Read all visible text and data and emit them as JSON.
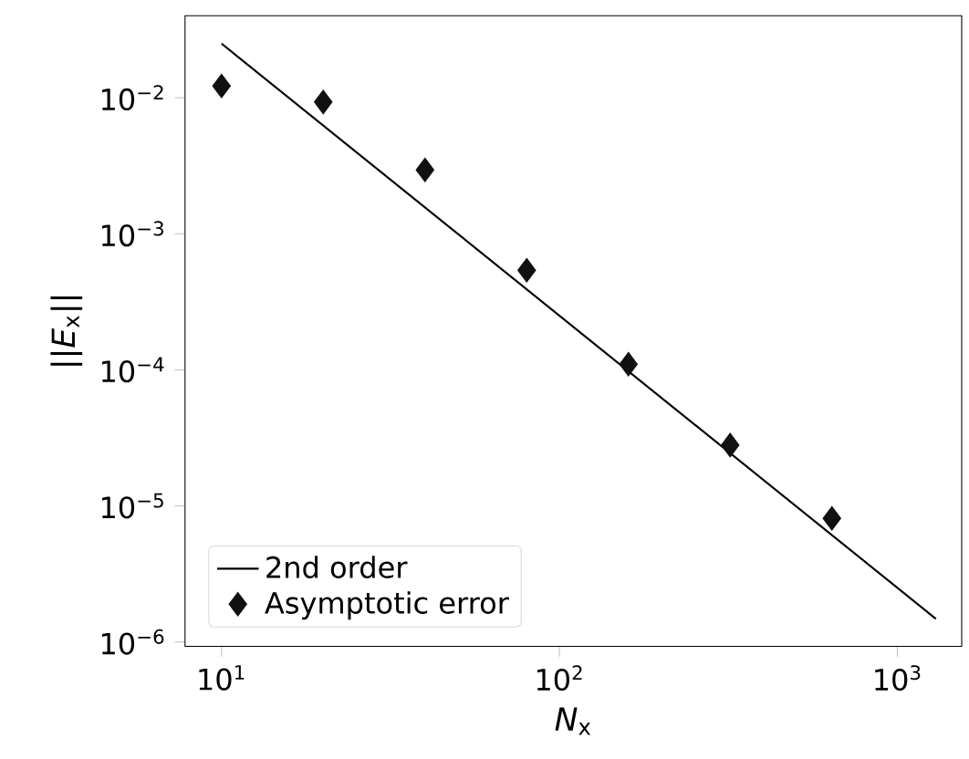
{
  "chart_data": {
    "type": "scatter",
    "xlabel": "*N*$_{x}$",
    "ylabel": "||*E*$_{x}$||",
    "log": "xy",
    "legend": "bottom left",
    "xlim": [
      7.8,
      1550
    ],
    "ylim": [
      9.3e-07,
      0.04
    ],
    "xticks": [
      {
        "value": 10,
        "label": "10$^{1}$"
      },
      {
        "value": 100,
        "label": "10$^{2}$"
      },
      {
        "value": 1000,
        "label": "10$^{3}$"
      }
    ],
    "yticks": [
      {
        "value": 1e-06,
        "label": "10$^{−6}$"
      },
      {
        "value": 1e-05,
        "label": "10$^{−5}$"
      },
      {
        "value": 0.0001,
        "label": "10$^{−4}$"
      },
      {
        "value": 0.001,
        "label": "10$^{−3}$"
      },
      {
        "value": 0.01,
        "label": "10$^{−2}$"
      }
    ],
    "series": [
      {
        "name": "2nd order",
        "type": "line",
        "color": "#000000",
        "line_style": "solid",
        "marker": "none",
        "x": [
          10,
          1300
        ],
        "values": [
          0.025,
          1.48e-06
        ]
      },
      {
        "name": "Asymptotic error",
        "color": "#111111",
        "marker": "diamond",
        "x": [
          10,
          20,
          40,
          80,
          160,
          320,
          640
        ],
        "values": [
          0.0122,
          0.0093,
          0.00295,
          0.00054,
          0.00011,
          2.8e-05,
          8.1e-06
        ]
      }
    ]
  }
}
